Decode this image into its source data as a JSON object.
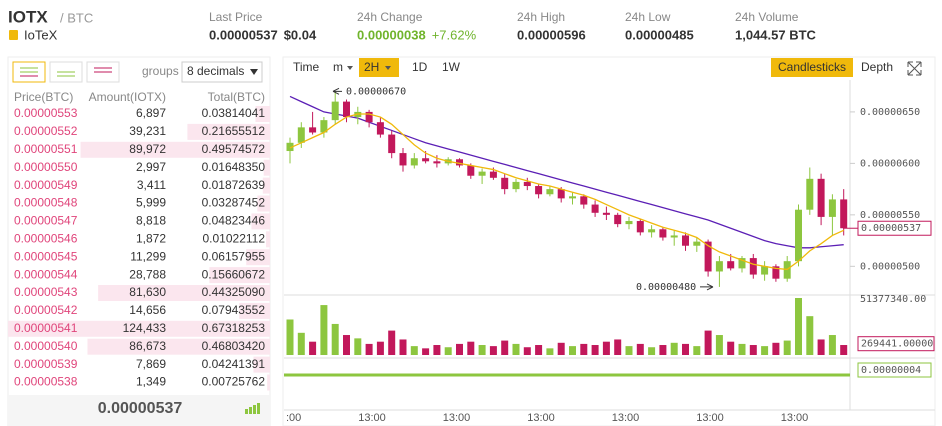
{
  "header": {
    "symbol": "IOTX",
    "quote": "/ BTC",
    "name": "IoTeX",
    "stats": [
      {
        "label": "Last Price",
        "value": "0.00000537",
        "extra": "$0.04"
      },
      {
        "label": "24h Change",
        "value": "0.00000038",
        "extra": "+7.62%"
      },
      {
        "label": "24h High",
        "value": "0.00000596"
      },
      {
        "label": "24h Low",
        "value": "0.00000485"
      },
      {
        "label": "24h Volume",
        "value": "1,044.57 BTC"
      }
    ]
  },
  "order_book": {
    "groups_label": "groups",
    "decimals": "8 decimals",
    "columns": [
      "Price(BTC)",
      "Amount(IOTX)",
      "Total(BTC)"
    ],
    "rows": [
      [
        "0.00000553",
        "6,897",
        "0.03814041"
      ],
      [
        "0.00000552",
        "39,231",
        "0.21655512"
      ],
      [
        "0.00000551",
        "89,972",
        "0.49574572"
      ],
      [
        "0.00000550",
        "2,997",
        "0.01648350"
      ],
      [
        "0.00000549",
        "3,411",
        "0.01872639"
      ],
      [
        "0.00000548",
        "5,999",
        "0.03287452"
      ],
      [
        "0.00000547",
        "8,818",
        "0.04823446"
      ],
      [
        "0.00000546",
        "1,872",
        "0.01022112"
      ],
      [
        "0.00000545",
        "11,299",
        "0.06157955"
      ],
      [
        "0.00000544",
        "28,788",
        "0.15660672"
      ],
      [
        "0.00000543",
        "81,630",
        "0.44325090"
      ],
      [
        "0.00000542",
        "14,656",
        "0.07943552"
      ],
      [
        "0.00000541",
        "124,433",
        "0.67318253"
      ],
      [
        "0.00000540",
        "86,673",
        "0.46803420"
      ],
      [
        "0.00000539",
        "7,869",
        "0.04241391"
      ],
      [
        "0.00000538",
        "1,349",
        "0.00725762"
      ]
    ],
    "last_price": "0.00000537"
  },
  "toolbar": {
    "intervals": [
      "Time",
      "m",
      "2H",
      "1D",
      "1W"
    ],
    "active": "2H",
    "views": [
      "Candlesticks",
      "Depth"
    ]
  },
  "chart_data": {
    "type": "candlestick",
    "open": [
      6.12e-06,
      6.2e-06,
      6.35e-06,
      6.3e-06,
      6.42e-06,
      6.6e-06,
      6.45e-06,
      6.5e-06,
      6.4e-06,
      6.28e-06,
      6.1e-06,
      5.98e-06,
      6.05e-06,
      6.02e-06,
      6e-06,
      6.04e-06,
      5.98e-06,
      5.88e-06,
      5.92e-06,
      5.86e-06,
      5.75e-06,
      5.82e-06,
      5.78e-06,
      5.7e-06,
      5.75e-06,
      5.66e-06,
      5.68e-06,
      5.6e-06,
      5.52e-06,
      5.5e-06,
      5.41e-06,
      5.44e-06,
      5.33e-06,
      5.36e-06,
      5.28e-06,
      5.3e-06,
      5.2e-06,
      5.24e-06,
      4.95e-06,
      5.05e-06,
      4.98e-06,
      5.08e-06,
      4.92e-06,
      5e-06,
      4.88e-06,
      5.05e-06,
      5.55e-06,
      5.85e-06,
      5.48e-06,
      5.65e-06
    ],
    "high": [
      6.25e-06,
      6.4e-06,
      6.5e-06,
      6.45e-06,
      6.7e-06,
      6.62e-06,
      6.55e-06,
      6.52e-06,
      6.45e-06,
      6.32e-06,
      6.15e-06,
      6.1e-06,
      6.12e-06,
      6.08e-06,
      6.06e-06,
      6.05e-06,
      6e-06,
      5.95e-06,
      5.96e-06,
      5.9e-06,
      5.85e-06,
      5.86e-06,
      5.8e-06,
      5.78e-06,
      5.77e-06,
      5.72e-06,
      5.7e-06,
      5.64e-06,
      5.58e-06,
      5.52e-06,
      5.48e-06,
      5.46e-06,
      5.4e-06,
      5.38e-06,
      5.35e-06,
      5.33e-06,
      5.28e-06,
      5.26e-06,
      5.1e-06,
      5.12e-06,
      5.1e-06,
      5.12e-06,
      5.05e-06,
      5.02e-06,
      5.1e-06,
      5.6e-06,
      5.96e-06,
      5.9e-06,
      5.7e-06,
      5.75e-06
    ],
    "low": [
      6e-06,
      6.15e-06,
      6.28e-06,
      6.25e-06,
      6.38e-06,
      6.4e-06,
      6.38e-06,
      6.35e-06,
      6.25e-06,
      6.05e-06,
      5.92e-06,
      5.95e-06,
      6e-06,
      5.96e-06,
      5.98e-06,
      5.96e-06,
      5.85e-06,
      5.8e-06,
      5.84e-06,
      5.7e-06,
      5.72e-06,
      5.74e-06,
      5.66e-06,
      5.68e-06,
      5.62e-06,
      5.6e-06,
      5.56e-06,
      5.48e-06,
      5.45e-06,
      5.38e-06,
      5.36e-06,
      5.3e-06,
      5.28e-06,
      5.25e-06,
      5.2e-06,
      5.15e-06,
      5.14e-06,
      4.9e-06,
      4.8e-06,
      4.96e-06,
      4.94e-06,
      4.88e-06,
      4.86e-06,
      4.85e-06,
      4.85e-06,
      5e-06,
      5.5e-06,
      5.4e-06,
      5.3e-06,
      5.3e-06
    ],
    "close": [
      6.2e-06,
      6.35e-06,
      6.3e-06,
      6.42e-06,
      6.6e-06,
      6.45e-06,
      6.5e-06,
      6.4e-06,
      6.28e-06,
      6.1e-06,
      5.98e-06,
      6.05e-06,
      6.02e-06,
      6e-06,
      6.04e-06,
      5.98e-06,
      5.88e-06,
      5.92e-06,
      5.86e-06,
      5.75e-06,
      5.82e-06,
      5.78e-06,
      5.7e-06,
      5.75e-06,
      5.66e-06,
      5.68e-06,
      5.6e-06,
      5.52e-06,
      5.5e-06,
      5.41e-06,
      5.44e-06,
      5.33e-06,
      5.36e-06,
      5.28e-06,
      5.3e-06,
      5.2e-06,
      5.24e-06,
      4.95e-06,
      5.05e-06,
      4.98e-06,
      5.08e-06,
      4.92e-06,
      5e-06,
      4.88e-06,
      5.05e-06,
      5.55e-06,
      5.85e-06,
      5.48e-06,
      5.65e-06,
      5.37e-06
    ],
    "ma_short": [
      6.15e-06,
      6.2e-06,
      6.25e-06,
      6.3e-06,
      6.38e-06,
      6.45e-06,
      6.48e-06,
      6.48e-06,
      6.45e-06,
      6.38e-06,
      6.28e-06,
      6.18e-06,
      6.1e-06,
      6.05e-06,
      6.02e-06,
      6e-06,
      5.98e-06,
      5.96e-06,
      5.94e-06,
      5.9e-06,
      5.86e-06,
      5.83e-06,
      5.8e-06,
      5.78e-06,
      5.75e-06,
      5.72e-06,
      5.69e-06,
      5.65e-06,
      5.6e-06,
      5.55e-06,
      5.5e-06,
      5.46e-06,
      5.42e-06,
      5.38e-06,
      5.35e-06,
      5.32e-06,
      5.28e-06,
      5.2e-06,
      5.14e-06,
      5.1e-06,
      5.06e-06,
      5.02e-06,
      5e-06,
      4.98e-06,
      4.97e-06,
      5.05e-06,
      5.15e-06,
      5.22e-06,
      5.3e-06,
      5.35e-06
    ],
    "ma_long": [
      6.65e-06,
      6.6e-06,
      6.55e-06,
      6.5e-06,
      6.48e-06,
      6.46e-06,
      6.44e-06,
      6.4e-06,
      6.36e-06,
      6.32e-06,
      6.28e-06,
      6.24e-06,
      6.2e-06,
      6.17e-06,
      6.14e-06,
      6.11e-06,
      6.08e-06,
      6.05e-06,
      6.02e-06,
      5.99e-06,
      5.96e-06,
      5.93e-06,
      5.9e-06,
      5.87e-06,
      5.84e-06,
      5.81e-06,
      5.78e-06,
      5.75e-06,
      5.72e-06,
      5.69e-06,
      5.66e-06,
      5.63e-06,
      5.6e-06,
      5.57e-06,
      5.54e-06,
      5.51e-06,
      5.48e-06,
      5.45e-06,
      5.41e-06,
      5.37e-06,
      5.33e-06,
      5.29e-06,
      5.25e-06,
      5.22e-06,
      5.2e-06,
      5.18e-06,
      5.18e-06,
      5.19e-06,
      5.2e-06,
      5.21e-06
    ],
    "up_color": "#8dc63f",
    "down_color": "#c2185b",
    "ma_short_color": "#f0b90b",
    "ma_long_color": "#5b1fb5",
    "ylim": [
      4.77e-06,
      6.81e-06
    ],
    "yticks": [
      {
        "value": 6.5e-06,
        "label": "0.00000650"
      },
      {
        "value": 6e-06,
        "label": "0.00000600"
      },
      {
        "value": 5.5e-06,
        "label": "0.00000550"
      },
      {
        "value": 5e-06,
        "label": "0.00000500"
      }
    ],
    "current_price": 5.37e-06,
    "annotations": [
      {
        "value": 6.7e-06,
        "label": "0.00000670"
      },
      {
        "value": 4.8e-06,
        "label": "0.00000480"
      }
    ],
    "volume": [
      32000000,
      20000000,
      12000000,
      45000000,
      28000000,
      18000000,
      15000000,
      10000000,
      12000000,
      22000000,
      14000000,
      8000000,
      6000000,
      9000000,
      7000000,
      10000000,
      12000000,
      9000000,
      8000000,
      13000000,
      10000000,
      7000000,
      9000000,
      6000000,
      11000000,
      8000000,
      10000000,
      9000000,
      12000000,
      14000000,
      8000000,
      10000000,
      7000000,
      9000000,
      11000000,
      10000000,
      8000000,
      22000000,
      18000000,
      12000000,
      10000000,
      9000000,
      8000000,
      11000000,
      13000000,
      51377340,
      35000000,
      14000000,
      18000000,
      9000000
    ],
    "volume_ylim": [
      0,
      51377340
    ],
    "volume_ticks": [
      {
        "value": 51377340,
        "label": "51377340.00"
      }
    ],
    "volume_current": {
      "value": 269441,
      "label": "269441.00000"
    },
    "macd_current": "0.00000004",
    "time_labels": [
      ":00",
      "13:00",
      "13:00",
      "13:00",
      "13:00",
      "13:00",
      "13:00"
    ]
  }
}
